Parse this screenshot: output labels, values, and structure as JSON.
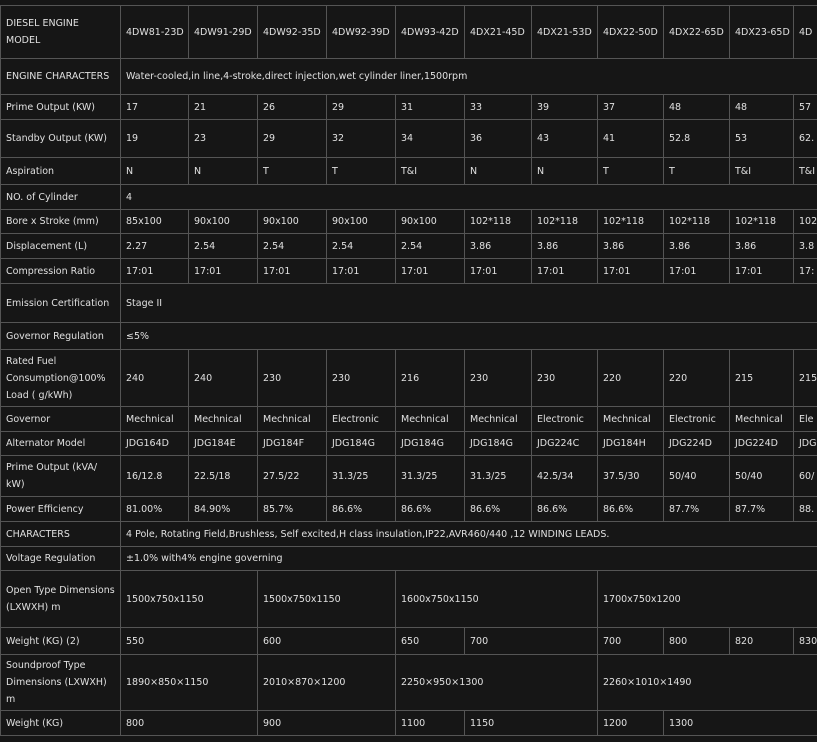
{
  "table": {
    "header": [
      "DIESEL ENGINE MODEL",
      "4DW81-23D",
      "4DW91-29D",
      "4DW92-35D",
      "4DW92-39D",
      "4DW93-42D",
      "4DX21-45D",
      "4DX21-53D",
      "4DX22-50D",
      "4DX22-65D",
      "4DX23-65D",
      "4D"
    ],
    "rows": [
      [
        "ENGINE CHARACTERS",
        "Water-cooled,in line,4-stroke,direct injection,wet cylinder liner,1500rpm"
      ],
      [
        "Prime Output (KW)",
        "17",
        "21",
        "26",
        "29",
        "31",
        "33",
        "39",
        "37",
        "48",
        "48",
        "57"
      ],
      [
        "Standby Output (KW)",
        "19",
        "23",
        "29",
        "32",
        "34",
        "36",
        "43",
        "41",
        "52.8",
        "53",
        "62."
      ],
      [
        "Aspiration",
        "N",
        "N",
        "T",
        "T",
        "T&I",
        "N",
        "N",
        "T",
        "T",
        "T&I",
        "T&I"
      ],
      [
        "NO. of Cylinder",
        "4"
      ],
      [
        "Bore x Stroke (mm)",
        "85x100",
        "90x100",
        "90x100",
        "90x100",
        "90x100",
        "102*118",
        "102*118",
        "102*118",
        "102*118",
        "102*118",
        "102"
      ],
      [
        "Displacement (L)",
        "2.27",
        "2.54",
        "2.54",
        "2.54",
        "2.54",
        "3.86",
        "3.86",
        "3.86",
        "3.86",
        "3.86",
        "3.8"
      ],
      [
        "Compression Ratio",
        "17:01",
        "17:01",
        "17:01",
        "17:01",
        "17:01",
        "17:01",
        "17:01",
        "17:01",
        "17:01",
        "17:01",
        "17:"
      ],
      [
        "Emission Certification",
        "Stage II"
      ],
      [
        "Governor Regulation",
        "≤5%"
      ],
      [
        "Rated Fuel Consumption@100% Load ( g/kWh)",
        "240",
        "240",
        "230",
        "230",
        "216",
        "230",
        "230",
        "220",
        "220",
        "215",
        "215"
      ],
      [
        "Governor",
        "Mechnical",
        "Mechnical",
        "Mechnical",
        "Electronic",
        "Mechnical",
        "Mechnical",
        "Electronic",
        "Mechnical",
        "Electronic",
        "Mechnical",
        "Ele"
      ],
      [
        "Alternator Model",
        "JDG164D",
        "JDG184E",
        "JDG184F",
        "JDG184G",
        "JDG184G",
        "JDG184G",
        "JDG224C",
        "JDG184H",
        "JDG224D",
        "JDG224D",
        "JDG"
      ],
      [
        "Prime Output (kVA/ kW)",
        "16/12.8",
        "22.5/18",
        "27.5/22",
        "31.3/25",
        "31.3/25",
        "31.3/25",
        "42.5/34",
        "37.5/30",
        "50/40",
        "50/40",
        "60/"
      ],
      [
        "Power Efficiency",
        "81.00%",
        "84.90%",
        "85.7%",
        "86.6%",
        "86.6%",
        "86.6%",
        "86.6%",
        "86.6%",
        "87.7%",
        "87.7%",
        "88."
      ],
      [
        "CHARACTERS",
        "4 Pole, Rotating Field,Brushless, Self excited,H class insulation,IP22,AVR460/440 ,12 WINDING LEADS."
      ],
      [
        "Voltage Regulation",
        "±1.0% with4% engine governing"
      ],
      [
        "Open Type Dimensions (LXWXH) m",
        "1500x750x1150",
        "1500x750x1150",
        "1600x750x1150",
        "1700x750x1200"
      ],
      [
        "Weight (KG) (2)",
        "550",
        "600",
        "650",
        "700",
        "700",
        "800",
        "820",
        "830"
      ],
      [
        "Soundproof Type Dimensions (LXWXH) m",
        "1890×850×1150",
        "2010×870×1200",
        "2250×950×1300",
        "2260×1010×1490"
      ],
      [
        "Weight (KG)",
        "800",
        "900",
        "1100",
        "1150",
        "1200",
        "1300"
      ]
    ]
  }
}
